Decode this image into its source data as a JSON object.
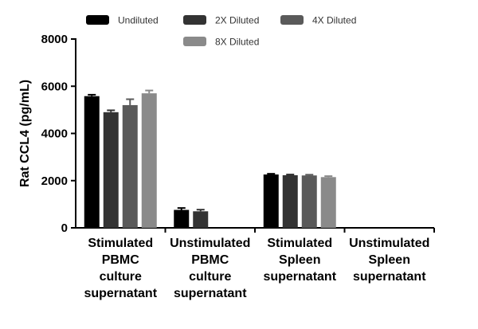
{
  "chart_data": {
    "type": "bar",
    "ylabel": "Rat CCL4 (pg/mL)",
    "ylim": [
      0,
      8000
    ],
    "yticks": [
      0,
      2000,
      4000,
      6000,
      8000
    ],
    "ytick_labels": [
      "0",
      "2000",
      "4000",
      "6000",
      "8000"
    ],
    "categories": [
      [
        "Stimulated",
        "PBMC",
        "culture",
        "supernatant"
      ],
      [
        "Unstimulated",
        "PBMC",
        "culture",
        "supernatant"
      ],
      [
        "Stimulated",
        "Spleen",
        "supernatant"
      ],
      [
        "Unstimulated",
        "Spleen",
        "supernatant"
      ]
    ],
    "series": [
      {
        "name": "Undiluted",
        "color": "#000000",
        "values": [
          5580,
          760,
          2260,
          null
        ],
        "errors": [
          60,
          80,
          30,
          null
        ]
      },
      {
        "name": "2X Diluted",
        "color": "#333333",
        "values": [
          4900,
          700,
          2230,
          null
        ],
        "errors": [
          80,
          70,
          30,
          null
        ]
      },
      {
        "name": "4X Diluted",
        "color": "#5a5a5a",
        "values": [
          5200,
          null,
          2220,
          null
        ],
        "errors": [
          250,
          null,
          30,
          null
        ]
      },
      {
        "name": "8X Diluted",
        "color": "#8a8a8a",
        "values": [
          5700,
          null,
          2150,
          null
        ],
        "errors": [
          120,
          null,
          40,
          null
        ]
      }
    ],
    "legend_position": "top",
    "grid": false
  }
}
